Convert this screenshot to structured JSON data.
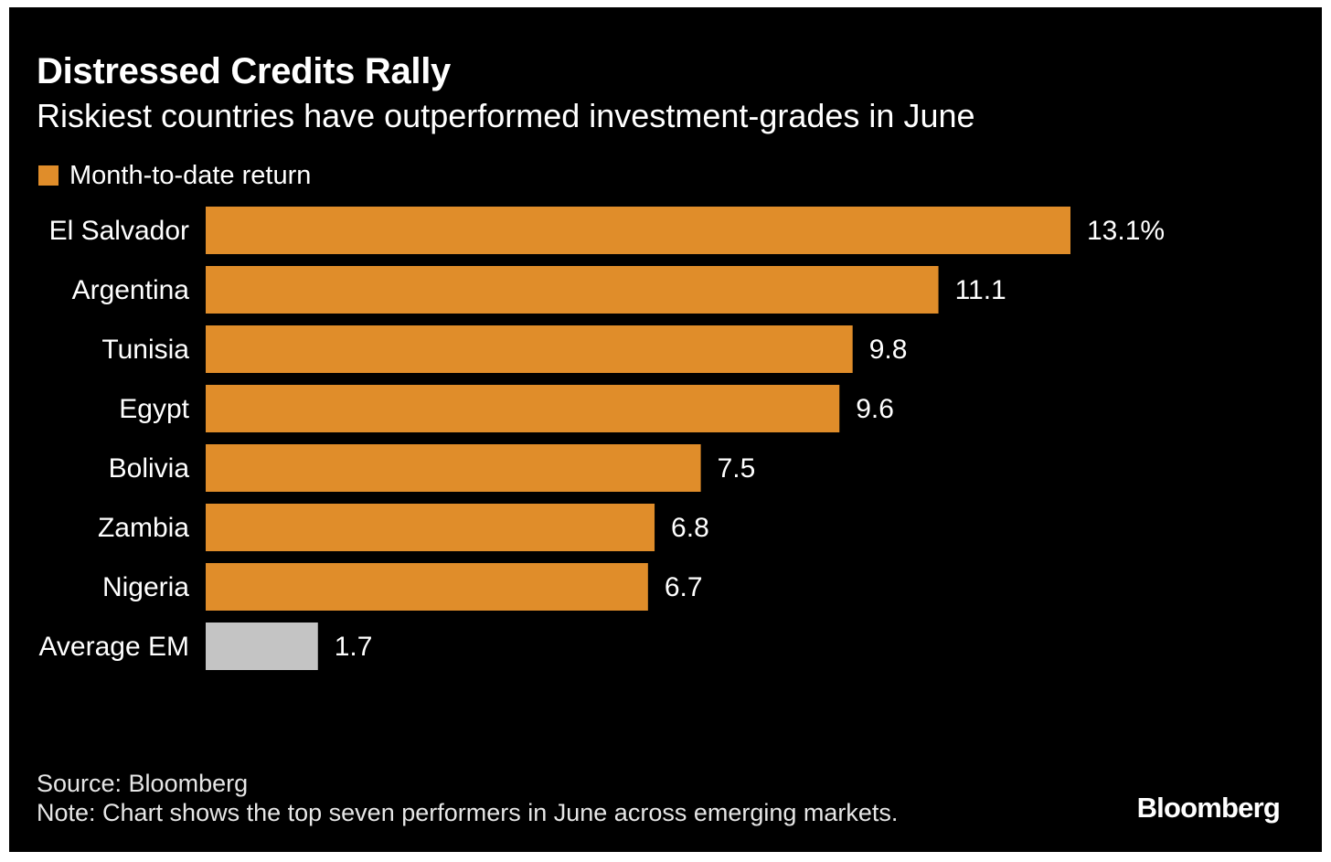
{
  "chart_data": {
    "type": "bar",
    "orientation": "horizontal",
    "title": "Distressed Credits Rally",
    "subtitle": "Riskiest countries have outperformed investment-grades in June",
    "categories": [
      "El Salvador",
      "Argentina",
      "Tunisia",
      "Egypt",
      "Bolivia",
      "Zambia",
      "Nigeria",
      "Average EM"
    ],
    "series": [
      {
        "name": "Month-to-date return",
        "values": [
          13.1,
          11.1,
          9.8,
          9.6,
          7.5,
          6.8,
          6.7,
          1.7
        ],
        "value_labels": [
          "13.1%",
          "11.1",
          "9.8",
          "9.6",
          "7.5",
          "6.8",
          "6.7",
          "1.7"
        ]
      }
    ],
    "highlight_category": "Average EM",
    "colors": {
      "bar": "#e08d2a",
      "highlight": "#c4c4c4",
      "background": "#000000",
      "text": "#ffffff"
    },
    "legend_position": "top-left",
    "grid": false,
    "xlim": [
      0,
      13.1
    ]
  },
  "footer": {
    "source": "Source: Bloomberg",
    "note": "Note: Chart shows the top seven performers in June across emerging markets.",
    "logo": "Bloomberg"
  }
}
